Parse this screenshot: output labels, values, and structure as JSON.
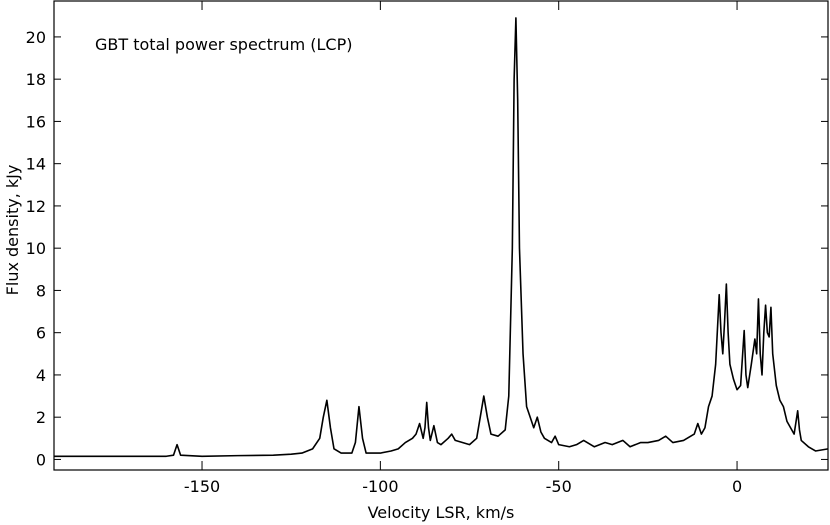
{
  "chart_data": {
    "type": "line",
    "annotation": "GBT total power spectrum (LCP)",
    "xlabel": "Velocity LSR, km/s",
    "ylabel": "Flux density, kJy",
    "color": "#000000",
    "xlim": [
      -191.5,
      25.5
    ],
    "ylim": [
      -0.5,
      21.7
    ],
    "xticks": [
      -150,
      -100,
      -50,
      0
    ],
    "yticks": [
      0,
      2,
      4,
      6,
      8,
      10,
      12,
      14,
      16,
      18,
      20
    ],
    "x": [
      -191.5,
      -180,
      -170,
      -160,
      -158,
      -157,
      -156,
      -150,
      -140,
      -130,
      -125,
      -122,
      -119,
      -117,
      -116,
      -115,
      -114,
      -113,
      -111,
      -108,
      -107,
      -106,
      -105,
      -104,
      -100,
      -97,
      -95,
      -93,
      -91,
      -90,
      -89,
      -88,
      -87.5,
      -87,
      -86.5,
      -86,
      -85,
      -84,
      -83,
      -81,
      -80,
      -79,
      -77,
      -75,
      -73,
      -72,
      -71,
      -70,
      -69,
      -67,
      -65,
      -64,
      -63,
      -62.5,
      -62,
      -61.5,
      -61,
      -60,
      -59,
      -58,
      -57,
      -56,
      -55,
      -54,
      -52,
      -51,
      -50,
      -47,
      -45,
      -43,
      -40,
      -37,
      -35,
      -32,
      -30,
      -27,
      -25,
      -22,
      -20,
      -18,
      -15,
      -12,
      -11,
      -10,
      -9,
      -8,
      -7,
      -6,
      -5,
      -4.5,
      -4,
      -3.5,
      -3,
      -2.5,
      -2,
      -1,
      0,
      1,
      2,
      2.5,
      3,
      4,
      5,
      5.5,
      6,
      6.5,
      7,
      7.5,
      8,
      8.5,
      9,
      9.5,
      10,
      11,
      12,
      13,
      14,
      15,
      16,
      17,
      17.5,
      18,
      20,
      22,
      25.5
    ],
    "values": [
      0.15,
      0.15,
      0.15,
      0.15,
      0.2,
      0.7,
      0.2,
      0.15,
      0.18,
      0.2,
      0.25,
      0.3,
      0.5,
      1.0,
      2.0,
      2.8,
      1.5,
      0.5,
      0.3,
      0.3,
      0.8,
      2.5,
      1.0,
      0.3,
      0.3,
      0.4,
      0.5,
      0.8,
      1.0,
      1.2,
      1.7,
      1.0,
      1.5,
      2.7,
      1.5,
      0.9,
      1.6,
      0.8,
      0.7,
      1.0,
      1.2,
      0.9,
      0.8,
      0.7,
      1.0,
      2.0,
      3.0,
      2.0,
      1.2,
      1.1,
      1.4,
      3,
      10,
      18,
      20.9,
      17,
      10,
      5,
      2.5,
      2.0,
      1.5,
      2.0,
      1.3,
      1.0,
      0.8,
      1.1,
      0.7,
      0.6,
      0.7,
      0.9,
      0.6,
      0.8,
      0.7,
      0.9,
      0.6,
      0.8,
      0.8,
      0.9,
      1.1,
      0.8,
      0.9,
      1.2,
      1.7,
      1.2,
      1.5,
      2.5,
      3.0,
      4.5,
      7.8,
      6,
      5,
      6.5,
      8.3,
      6,
      4.5,
      3.8,
      3.3,
      3.5,
      6.1,
      4,
      3.4,
      4.5,
      5.7,
      5,
      7.6,
      5,
      4,
      6,
      7.3,
      6,
      5.8,
      7.2,
      5,
      3.5,
      2.8,
      2.5,
      1.8,
      1.5,
      1.2,
      2.3,
      1.4,
      0.9,
      0.6,
      0.4,
      0.5
    ]
  }
}
